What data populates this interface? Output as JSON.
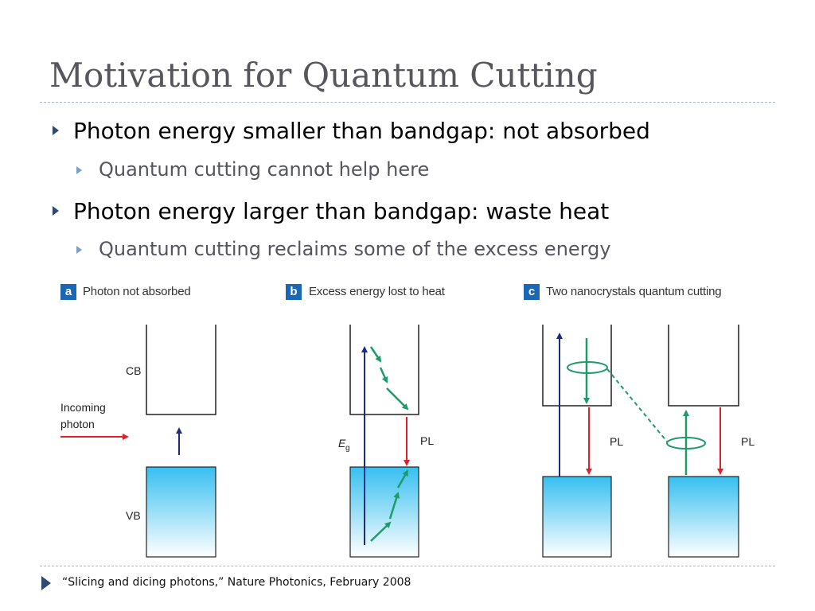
{
  "slide": {
    "title": "Motivation for Quantum Cutting",
    "bullets": [
      {
        "level": 1,
        "text": "Photon energy smaller than bandgap: not absorbed"
      },
      {
        "level": 2,
        "text": "Quantum cutting cannot help here"
      },
      {
        "level": 1,
        "text": "Photon energy larger than bandgap: waste heat"
      },
      {
        "level": 2,
        "text": "Quantum cutting reclaims some of the excess energy"
      }
    ],
    "citation": "“Slicing and dicing photons,” Nature Photonics, February 2008"
  },
  "figure": {
    "panel_a": {
      "letter": "a",
      "title": "Photon not absorbed",
      "cb_label": "CB",
      "vb_label": "VB",
      "incoming_line1": "Incoming",
      "incoming_line2": "photon"
    },
    "panel_b": {
      "letter": "b",
      "title": "Excess energy lost to heat",
      "eg_label": "E",
      "eg_sub": "g",
      "pl_label": "PL"
    },
    "panel_c": {
      "letter": "c",
      "title": "Two nanocrystals quantum cutting",
      "pl_label_1": "PL",
      "pl_label_2": "PL"
    }
  },
  "colors": {
    "title_text": "#56565c",
    "badge": "#1b66b6",
    "bullet_marker": "#2d4a73",
    "sub_bullet_marker": "#7f9ec2",
    "arrow_red": "#e0202a",
    "arrow_blue": "#1e2b86",
    "arrow_green": "#1f9a6a",
    "band_fill_top": "#36bff0",
    "band_fill_bottom": "#ffffff"
  }
}
